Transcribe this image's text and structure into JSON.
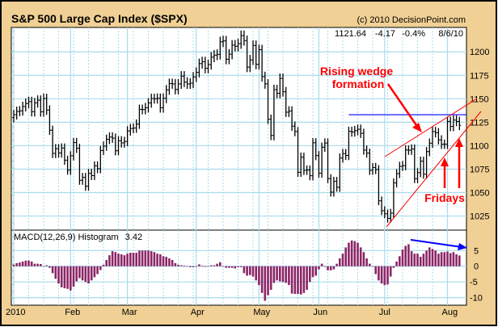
{
  "chart_data": [
    {
      "type": "bar",
      "subtype": "ohlc",
      "title": "S&P 500 Large Cap Index ($SPX)",
      "copyright": "(c) 2010 DecisionPoint.com",
      "quote": {
        "last": "1121.64",
        "change": "-4.17",
        "pct": "-0.4%",
        "date": "8/6/10"
      },
      "x_labels": [
        "2010",
        "Feb",
        "Mar",
        "Apr",
        "May",
        "Jun",
        "Jul",
        "Aug"
      ],
      "month_start_index": [
        0,
        19,
        38,
        61,
        82,
        102,
        124,
        145
      ],
      "y_ticks": [
        1025,
        1050,
        1075,
        1100,
        1125,
        1150,
        1175,
        1200
      ],
      "ylim": [
        1010,
        1226
      ],
      "grid": true,
      "close": [
        1132.99,
        1136.52,
        1137.14,
        1141.69,
        1144.98,
        1146.98,
        1136.22,
        1145.68,
        1148.46,
        1136.03,
        1150.23,
        1138.04,
        1116.48,
        1091.76,
        1096.78,
        1092.17,
        1097.5,
        1084.53,
        1073.87,
        1089.19,
        1103.32,
        1097.28,
        1063.11,
        1066.19,
        1056.74,
        1070.52,
        1068.13,
        1078.47,
        1075.51,
        1094.87,
        1099.51,
        1106.75,
        1109.17,
        1108.01,
        1094.6,
        1105.24,
        1102.94,
        1104.49,
        1115.71,
        1118.31,
        1118.79,
        1122.97,
        1138.7,
        1138.5,
        1140.45,
        1145.61,
        1150.24,
        1149.99,
        1150.51,
        1140.4,
        1150.51,
        1159.46,
        1166.21,
        1165.83,
        1159.9,
        1165.81,
        1174.17,
        1167.72,
        1165.73,
        1166.59,
        1173.22,
        1178.1,
        1187.44,
        1189.44,
        1182.45,
        1186.44,
        1194.37,
        1196.48,
        1197.3,
        1210.65,
        1211.67,
        1192.13,
        1197.52,
        1207.17,
        1205.94,
        1208.67,
        1217.28,
        1212.05,
        1183.71,
        1191.36,
        1206.78,
        1186.69,
        1202.26,
        1173.6,
        1165.9,
        1128.15,
        1110.88,
        1159.73,
        1155.79,
        1171.67,
        1157.44,
        1135.68,
        1136.94,
        1120.8,
        1115.05,
        1071.59,
        1087.69,
        1073.65,
        1074.03,
        1067.95,
        1103.06,
        1089.41,
        1070.71,
        1098.38,
        1102.83,
        1064.88,
        1050.47,
        1062.0,
        1055.69,
        1086.84,
        1091.6,
        1089.63,
        1115.23,
        1114.61,
        1116.04,
        1117.51,
        1113.2,
        1095.31,
        1092.04,
        1073.69,
        1076.76,
        1074.57,
        1041.24,
        1030.71,
        1027.37,
        1022.58,
        1028.06,
        1060.27,
        1070.25,
        1077.96,
        1078.75,
        1095.34,
        1095.17,
        1096.48,
        1064.88,
        1071.25,
        1083.48,
        1069.59,
        1093.67,
        1102.66,
        1115.01,
        1113.84,
        1106.13,
        1101.53,
        1101.6,
        1125.86,
        1120.46,
        1127.24,
        1125.81,
        1121.64
      ],
      "annotations": {
        "wedge_label_line1": "Rising wedge",
        "wedge_label_line2": "formation",
        "fridays_label": "Fridays",
        "resistance_level": 1133,
        "resistance_start_index": 112,
        "annotation_color": "#FF0000",
        "resistance_color": "#0000FF"
      }
    },
    {
      "type": "bar",
      "title": "MACD(12,26,9) Histogram",
      "last_value": "3.42",
      "y_ticks": [
        5,
        0,
        -5,
        -10
      ],
      "ylim": [
        -12.4,
        11.5
      ],
      "bar_color": "#8B2566",
      "values": [
        0.5,
        1,
        1.2,
        1.5,
        1.8,
        1.8,
        1.5,
        0.8,
        0.8,
        0.7,
        0,
        0.3,
        -0.5,
        -2.2,
        -4,
        -5.5,
        -6.7,
        -7,
        -7.2,
        -7.7,
        -6.5,
        -4.8,
        -3.8,
        -4.5,
        -5,
        -5.5,
        -4.5,
        -3.5,
        -2.5,
        -1.2,
        0.5,
        2,
        3.5,
        4.8,
        4.5,
        4,
        3.8,
        3.5,
        4,
        4.3,
        4.3,
        4.3,
        5,
        5,
        5,
        5,
        4.8,
        4.5,
        4,
        3.8,
        3.2,
        3,
        2.5,
        2,
        1,
        0.5,
        0.3,
        0.2,
        0,
        -0.3,
        -0.3,
        0,
        0.6,
        0.2,
        -0.2,
        0.1,
        0.3,
        0.3,
        0.8,
        1.3,
        -0.1,
        -0.5,
        -0.5,
        -0.5,
        -0.7,
        -0.3,
        -0.3,
        -2.2,
        -3,
        -2.8,
        -3.3,
        -4.5,
        -6,
        -8.5,
        -11,
        -9.2,
        -7.5,
        -5.3,
        -4.5,
        -4.8,
        -5,
        -5.3,
        -6,
        -8.7,
        -8.8,
        -8.8,
        -9,
        -8.5,
        -7.5,
        -5,
        -3.5,
        -3,
        -1,
        0.8,
        -0.2,
        -1.3,
        -1.3,
        -1,
        0.8,
        2.5,
        4,
        6,
        7.5,
        8.2,
        8,
        7.5,
        6,
        4.5,
        2.5,
        0.8,
        0,
        -2.5,
        -4.5,
        -5.5,
        -6,
        -5.8,
        -3.3,
        -0.5,
        1.5,
        3.2,
        5.3,
        6.5,
        7,
        4.8,
        4,
        4,
        3,
        4,
        5,
        6,
        5.5,
        5,
        4,
        4.5,
        4.5,
        4.7,
        4.2,
        4.5,
        3.8,
        3.42
      ],
      "trend_arrow_color": "#0000FF"
    }
  ],
  "colors": {
    "background": "#F0D094",
    "grid": "#A8DCEC",
    "plot": "#FFFFFF"
  }
}
